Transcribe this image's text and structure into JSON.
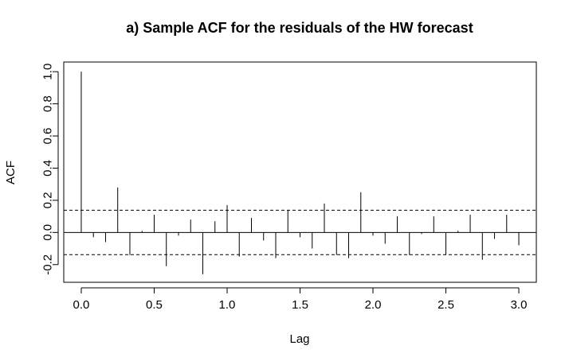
{
  "chart_data": {
    "type": "bar",
    "title": "a) Sample ACF for the residuals of the HW forecast",
    "xlabel": "Lag",
    "ylabel": "ACF",
    "xlim": [
      -0.12,
      3.12
    ],
    "ylim": [
      -0.31,
      1.06
    ],
    "x_ticks": [
      0.0,
      0.5,
      1.0,
      1.5,
      2.0,
      2.5,
      3.0
    ],
    "x_tick_labels": [
      "0.0",
      "0.5",
      "1.0",
      "1.5",
      "2.0",
      "2.5",
      "3.0"
    ],
    "y_ticks": [
      -0.2,
      0.0,
      0.2,
      0.4,
      0.6,
      0.8,
      1.0
    ],
    "y_tick_labels": [
      "-0.2",
      "0.0",
      "0.2",
      "0.4",
      "0.6",
      "0.8",
      "1.0"
    ],
    "confidence_bound": 0.138,
    "lags": [
      0.0,
      0.0833,
      0.1667,
      0.25,
      0.3333,
      0.4167,
      0.5,
      0.5833,
      0.6667,
      0.75,
      0.8333,
      0.9167,
      1.0,
      1.0833,
      1.1667,
      1.25,
      1.3333,
      1.4167,
      1.5,
      1.5833,
      1.6667,
      1.75,
      1.8333,
      1.9167,
      2.0,
      2.0833,
      2.1667,
      2.25,
      2.3333,
      2.4167,
      2.5,
      2.5833,
      2.6667,
      2.75,
      2.8333,
      2.9167,
      3.0
    ],
    "acf": [
      1.0,
      -0.03,
      -0.06,
      0.28,
      -0.14,
      0.01,
      0.11,
      -0.21,
      -0.02,
      0.08,
      -0.26,
      0.07,
      0.17,
      -0.15,
      0.09,
      -0.05,
      -0.16,
      0.14,
      -0.03,
      -0.1,
      0.18,
      -0.14,
      -0.16,
      0.25,
      -0.02,
      -0.07,
      0.1,
      -0.14,
      -0.01,
      0.1,
      -0.14,
      0.01,
      0.11,
      -0.17,
      -0.04,
      0.11,
      -0.08
    ],
    "colors": {
      "spike": "#000000",
      "bound": "#000000",
      "frame": "#000000"
    }
  }
}
